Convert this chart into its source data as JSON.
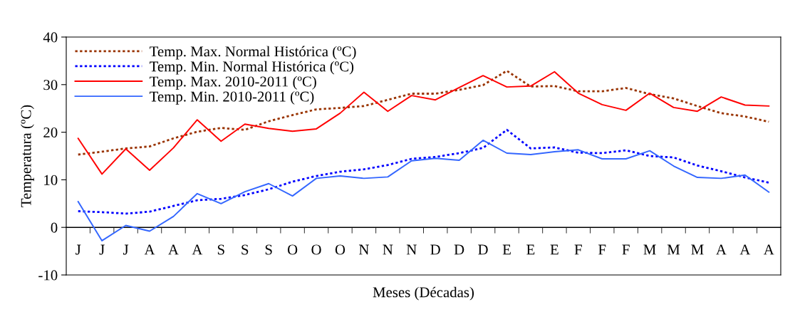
{
  "chart_data": {
    "type": "line",
    "xlabel": "Meses (Décadas)",
    "ylabel": "Temperatura (ºC)",
    "categories": [
      "J",
      "J",
      "J",
      "A",
      "A",
      "A",
      "S",
      "S",
      "S",
      "O",
      "O",
      "O",
      "N",
      "N",
      "N",
      "D",
      "D",
      "D",
      "E",
      "E",
      "E",
      "F",
      "F",
      "F",
      "M",
      "M",
      "M",
      "A",
      "A",
      "A"
    ],
    "ylim": [
      -10,
      40
    ],
    "yticks": [
      -10,
      0,
      10,
      20,
      30,
      40
    ],
    "grid": false,
    "legend": "top left",
    "marker": "none",
    "series": [
      {
        "name": "Temp. Max. Normal Histórica (ºC)",
        "color": "#993300",
        "line_style": "dotted",
        "values": [
          15.3,
          15.9,
          16.6,
          17.0,
          18.7,
          20.1,
          20.9,
          20.5,
          22.3,
          23.6,
          24.8,
          25.1,
          25.5,
          26.8,
          28.1,
          28.1,
          28.9,
          29.9,
          32.9,
          29.6,
          29.7,
          28.6,
          28.6,
          29.3,
          28.0,
          27.1,
          25.5,
          24.0,
          23.3,
          22.2
        ]
      },
      {
        "name": "Temp. Min. Normal Histórica (ºC)",
        "color": "#0000ff",
        "line_style": "dotted",
        "values": [
          3.4,
          3.2,
          2.9,
          3.3,
          4.5,
          5.7,
          6.0,
          6.8,
          8.0,
          9.6,
          10.8,
          11.7,
          12.2,
          13.1,
          14.4,
          14.8,
          15.6,
          16.7,
          20.5,
          16.6,
          16.8,
          15.7,
          15.6,
          16.2,
          15.0,
          14.7,
          13.0,
          11.8,
          10.5,
          9.4
        ]
      },
      {
        "name": "Temp. Max. 2010-2011 (ºC)",
        "color": "#ff0000",
        "line_style": "solid",
        "values": [
          18.7,
          11.2,
          16.5,
          12.0,
          16.7,
          22.6,
          18.1,
          21.7,
          20.8,
          20.2,
          20.7,
          24.0,
          28.4,
          24.4,
          27.7,
          26.8,
          29.4,
          31.9,
          29.5,
          29.7,
          32.7,
          28.2,
          25.8,
          24.6,
          28.2,
          25.2,
          24.4,
          27.4,
          25.7,
          25.5
        ]
      },
      {
        "name": "Temp. Min. 2010-2011 (ºC)",
        "color": "#3366ff",
        "line_style": "solid",
        "values": [
          5.4,
          -2.8,
          0.4,
          -0.8,
          2.3,
          7.1,
          5.0,
          7.5,
          9.2,
          6.6,
          10.3,
          10.8,
          10.3,
          10.6,
          14.0,
          14.5,
          14.1,
          18.3,
          15.6,
          15.3,
          15.9,
          16.3,
          14.4,
          14.4,
          16.1,
          12.9,
          10.5,
          10.3,
          11.0,
          7.4
        ]
      }
    ]
  }
}
